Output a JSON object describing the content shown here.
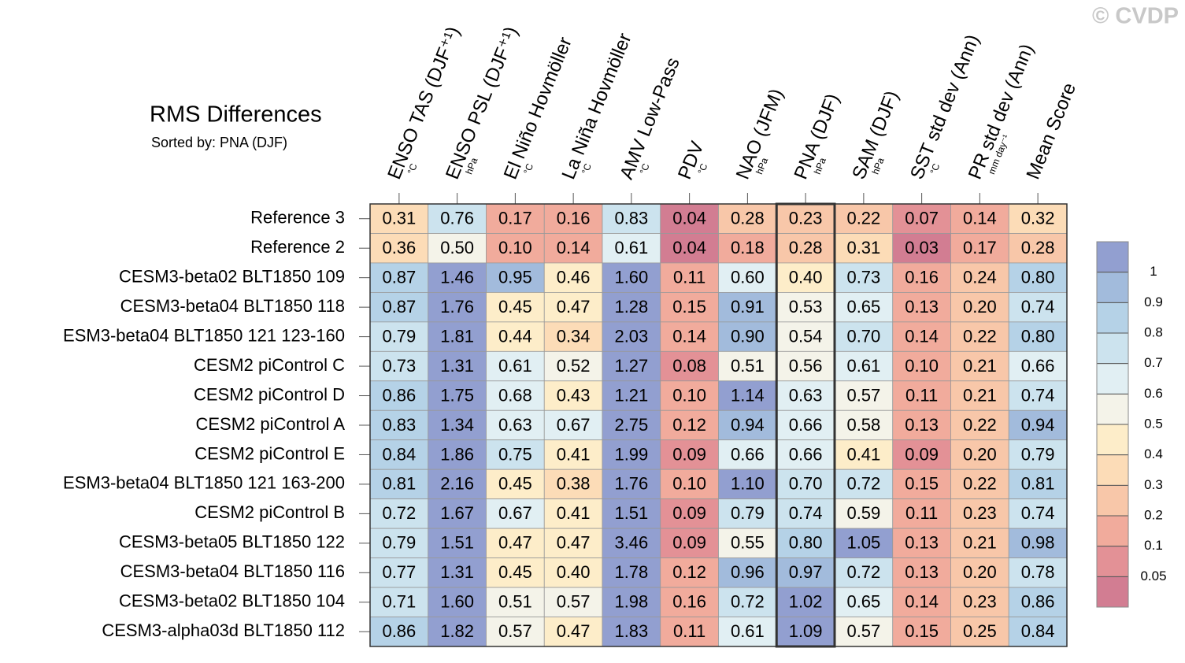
{
  "chart_data": {
    "type": "heatmap",
    "title": "RMS Differences",
    "subtitle": "Sorted by: PNA (DJF)",
    "watermark": "© CVDP",
    "highlight_column": 7,
    "columns": [
      {
        "name": "ENSO TAS (DJF⁺¹)",
        "unit": "°C"
      },
      {
        "name": "ENSO PSL (DJF⁺¹)",
        "unit": "hPa"
      },
      {
        "name": "El Niño Hovmöller",
        "unit": "°C"
      },
      {
        "name": "La Niña Hovmöller",
        "unit": "°C"
      },
      {
        "name": "AMV Low-Pass",
        "unit": "°C"
      },
      {
        "name": "PDV",
        "unit": "°C"
      },
      {
        "name": "NAO (JFM)",
        "unit": "hPa"
      },
      {
        "name": "PNA (DJF)",
        "unit": "hPa"
      },
      {
        "name": "SAM (DJF)",
        "unit": "hPa"
      },
      {
        "name": "SST std dev (Ann)",
        "unit": "°C"
      },
      {
        "name": "PR std dev (Ann)",
        "unit": "mm day⁻¹"
      },
      {
        "name": "Mean Score"
      }
    ],
    "rows": [
      "Reference 3",
      "Reference 2",
      "CESM3-beta02 BLT1850 109",
      "CESM3-beta04 BLT1850 118",
      "ESM3-beta04 BLT1850 121 123-160",
      "CESM2 piControl C",
      "CESM2 piControl D",
      "CESM2 piControl A",
      "CESM2 piControl E",
      "ESM3-beta04 BLT1850 121 163-200",
      "CESM2 piControl B",
      "CESM3-beta05 BLT1850 122",
      "CESM3-beta04 BLT1850 116",
      "CESM3-beta02 BLT1850 104",
      "CESM3-alpha03d BLT1850 112"
    ],
    "values": [
      [
        0.31,
        0.76,
        0.17,
        0.16,
        0.83,
        0.04,
        0.28,
        0.23,
        0.22,
        0.07,
        0.14,
        0.32
      ],
      [
        0.36,
        0.5,
        0.1,
        0.14,
        0.61,
        0.04,
        0.18,
        0.28,
        0.31,
        0.03,
        0.17,
        0.28
      ],
      [
        0.87,
        1.46,
        0.95,
        0.46,
        1.6,
        0.11,
        0.6,
        0.4,
        0.73,
        0.16,
        0.24,
        0.8
      ],
      [
        0.87,
        1.76,
        0.45,
        0.47,
        1.28,
        0.15,
        0.91,
        0.53,
        0.65,
        0.13,
        0.2,
        0.74
      ],
      [
        0.79,
        1.81,
        0.44,
        0.34,
        2.03,
        0.14,
        0.9,
        0.54,
        0.7,
        0.14,
        0.22,
        0.8
      ],
      [
        0.73,
        1.31,
        0.61,
        0.52,
        1.27,
        0.08,
        0.51,
        0.56,
        0.61,
        0.1,
        0.21,
        0.66
      ],
      [
        0.86,
        1.75,
        0.68,
        0.43,
        1.21,
        0.1,
        1.14,
        0.63,
        0.57,
        0.11,
        0.21,
        0.74
      ],
      [
        0.83,
        1.34,
        0.63,
        0.67,
        2.75,
        0.12,
        0.94,
        0.66,
        0.58,
        0.13,
        0.22,
        0.94
      ],
      [
        0.84,
        1.86,
        0.75,
        0.41,
        1.99,
        0.09,
        0.66,
        0.66,
        0.41,
        0.09,
        0.2,
        0.79
      ],
      [
        0.81,
        2.16,
        0.45,
        0.38,
        1.76,
        0.1,
        1.1,
        0.7,
        0.72,
        0.15,
        0.22,
        0.81
      ],
      [
        0.72,
        1.67,
        0.67,
        0.41,
        1.51,
        0.09,
        0.79,
        0.74,
        0.59,
        0.11,
        0.23,
        0.74
      ],
      [
        0.79,
        1.51,
        0.47,
        0.47,
        3.46,
        0.09,
        0.55,
        0.8,
        1.05,
        0.13,
        0.21,
        0.98
      ],
      [
        0.77,
        1.31,
        0.45,
        0.4,
        1.78,
        0.12,
        0.96,
        0.97,
        0.72,
        0.13,
        0.2,
        0.78
      ],
      [
        0.71,
        1.6,
        0.51,
        0.57,
        1.98,
        0.16,
        0.72,
        1.02,
        0.65,
        0.14,
        0.23,
        0.86
      ],
      [
        0.86,
        1.82,
        0.57,
        0.47,
        1.83,
        0.11,
        0.61,
        1.09,
        0.57,
        0.15,
        0.25,
        0.84
      ]
    ],
    "value_labels": [
      [
        "0.31",
        "0.76",
        "0.17",
        "0.16",
        "0.83",
        "0.04",
        "0.28",
        "0.23",
        "0.22",
        "0.07",
        "0.14",
        "0.32"
      ],
      [
        "0.36",
        "0.50",
        "0.10",
        "0.14",
        "0.61",
        "0.04",
        "0.18",
        "0.28",
        "0.31",
        "0.03",
        "0.17",
        "0.28"
      ],
      [
        "0.87",
        "1.46",
        "0.95",
        "0.46",
        "1.60",
        "0.11",
        "0.60",
        "0.40",
        "0.73",
        "0.16",
        "0.24",
        "0.80"
      ],
      [
        "0.87",
        "1.76",
        "0.45",
        "0.47",
        "1.28",
        "0.15",
        "0.91",
        "0.53",
        "0.65",
        "0.13",
        "0.20",
        "0.74"
      ],
      [
        "0.79",
        "1.81",
        "0.44",
        "0.34",
        "2.03",
        "0.14",
        "0.90",
        "0.54",
        "0.70",
        "0.14",
        "0.22",
        "0.80"
      ],
      [
        "0.73",
        "1.31",
        "0.61",
        "0.52",
        "1.27",
        "0.08",
        "0.51",
        "0.56",
        "0.61",
        "0.10",
        "0.21",
        "0.66"
      ],
      [
        "0.86",
        "1.75",
        "0.68",
        "0.43",
        "1.21",
        "0.10",
        "1.14",
        "0.63",
        "0.57",
        "0.11",
        "0.21",
        "0.74"
      ],
      [
        "0.83",
        "1.34",
        "0.63",
        "0.67",
        "2.75",
        "0.12",
        "0.94",
        "0.66",
        "0.58",
        "0.13",
        "0.22",
        "0.94"
      ],
      [
        "0.84",
        "1.86",
        "0.75",
        "0.41",
        "1.99",
        "0.09",
        "0.66",
        "0.66",
        "0.41",
        "0.09",
        "0.20",
        "0.79"
      ],
      [
        "0.81",
        "2.16",
        "0.45",
        "0.38",
        "1.76",
        "0.10",
        "1.10",
        "0.70",
        "0.72",
        "0.15",
        "0.22",
        "0.81"
      ],
      [
        "0.72",
        "1.67",
        "0.67",
        "0.41",
        "1.51",
        "0.09",
        "0.79",
        "0.74",
        "0.59",
        "0.11",
        "0.23",
        "0.74"
      ],
      [
        "0.79",
        "1.51",
        "0.47",
        "0.47",
        "3.46",
        "0.09",
        "0.55",
        "0.80",
        "1.05",
        "0.13",
        "0.21",
        "0.98"
      ],
      [
        "0.77",
        "1.31",
        "0.45",
        "0.40",
        "1.78",
        "0.12",
        "0.96",
        "0.97",
        "0.72",
        "0.13",
        "0.20",
        "0.78"
      ],
      [
        "0.71",
        "1.60",
        "0.51",
        "0.57",
        "1.98",
        "0.16",
        "0.72",
        "1.02",
        "0.65",
        "0.14",
        "0.23",
        "0.86"
      ],
      [
        "0.86",
        "1.82",
        "0.57",
        "0.47",
        "1.83",
        "0.11",
        "0.61",
        "1.09",
        "0.57",
        "0.15",
        "0.25",
        "0.84"
      ]
    ],
    "colors": [
      [
        "#fcdcb7",
        "#cce3ee",
        "#f1ab9c",
        "#f1ab9c",
        "#cce3ee",
        "#d27d92",
        "#f8c7a9",
        "#f8c7a9",
        "#f8c7a9",
        "#e39196",
        "#f1ab9c",
        "#fcdcb7"
      ],
      [
        "#fcdcb7",
        "#f4f3e9",
        "#f1ab9c",
        "#f1ab9c",
        "#e1eff3",
        "#d27d92",
        "#f1ab9c",
        "#f8c7a9",
        "#fcdcb7",
        "#d27d92",
        "#f1ab9c",
        "#f8c7a9"
      ],
      [
        "#b5d2e7",
        "#929fd0",
        "#a2bbdc",
        "#fdedc9",
        "#929fd0",
        "#f1ab9c",
        "#e1eff3",
        "#fdedc9",
        "#cce3ee",
        "#f1ab9c",
        "#f8c7a9",
        "#b5d2e7"
      ],
      [
        "#b5d2e7",
        "#929fd0",
        "#fdedc9",
        "#fdedc9",
        "#929fd0",
        "#f1ab9c",
        "#a2bbdc",
        "#f4f3e9",
        "#e1eff3",
        "#f1ab9c",
        "#f8c7a9",
        "#cce3ee"
      ],
      [
        "#cce3ee",
        "#929fd0",
        "#fdedc9",
        "#fcdcb7",
        "#929fd0",
        "#f1ab9c",
        "#a2bbdc",
        "#f4f3e9",
        "#cce3ee",
        "#f1ab9c",
        "#f8c7a9",
        "#b5d2e7"
      ],
      [
        "#cce3ee",
        "#929fd0",
        "#e1eff3",
        "#f4f3e9",
        "#929fd0",
        "#e39196",
        "#f4f3e9",
        "#f4f3e9",
        "#e1eff3",
        "#f1ab9c",
        "#f8c7a9",
        "#e1eff3"
      ],
      [
        "#b5d2e7",
        "#929fd0",
        "#e1eff3",
        "#fdedc9",
        "#929fd0",
        "#f1ab9c",
        "#929fd0",
        "#e1eff3",
        "#f4f3e9",
        "#f1ab9c",
        "#f8c7a9",
        "#cce3ee"
      ],
      [
        "#b5d2e7",
        "#929fd0",
        "#e1eff3",
        "#e1eff3",
        "#929fd0",
        "#f1ab9c",
        "#a2bbdc",
        "#e1eff3",
        "#f4f3e9",
        "#f1ab9c",
        "#f8c7a9",
        "#a2bbdc"
      ],
      [
        "#b5d2e7",
        "#929fd0",
        "#cce3ee",
        "#fdedc9",
        "#929fd0",
        "#e39196",
        "#e1eff3",
        "#e1eff3",
        "#fdedc9",
        "#e39196",
        "#f8c7a9",
        "#cce3ee"
      ],
      [
        "#b5d2e7",
        "#929fd0",
        "#fdedc9",
        "#fcdcb7",
        "#929fd0",
        "#f1ab9c",
        "#929fd0",
        "#cce3ee",
        "#cce3ee",
        "#f1ab9c",
        "#f8c7a9",
        "#b5d2e7"
      ],
      [
        "#cce3ee",
        "#929fd0",
        "#e1eff3",
        "#fdedc9",
        "#929fd0",
        "#e39196",
        "#cce3ee",
        "#cce3ee",
        "#f4f3e9",
        "#f1ab9c",
        "#f8c7a9",
        "#cce3ee"
      ],
      [
        "#cce3ee",
        "#929fd0",
        "#fdedc9",
        "#fdedc9",
        "#929fd0",
        "#e39196",
        "#f4f3e9",
        "#b5d2e7",
        "#929fd0",
        "#f1ab9c",
        "#f8c7a9",
        "#a2bbdc"
      ],
      [
        "#cce3ee",
        "#929fd0",
        "#fdedc9",
        "#fdedc9",
        "#929fd0",
        "#f1ab9c",
        "#a2bbdc",
        "#a2bbdc",
        "#cce3ee",
        "#f1ab9c",
        "#f8c7a9",
        "#cce3ee"
      ],
      [
        "#cce3ee",
        "#929fd0",
        "#f4f3e9",
        "#f4f3e9",
        "#929fd0",
        "#f1ab9c",
        "#cce3ee",
        "#929fd0",
        "#e1eff3",
        "#f1ab9c",
        "#f8c7a9",
        "#b5d2e7"
      ],
      [
        "#b5d2e7",
        "#929fd0",
        "#f4f3e9",
        "#fdedc9",
        "#929fd0",
        "#f1ab9c",
        "#e1eff3",
        "#929fd0",
        "#f4f3e9",
        "#f1ab9c",
        "#f8c7a9",
        "#b5d2e7"
      ]
    ],
    "colorbar": {
      "levels": [
        0.05,
        0.1,
        0.2,
        0.3,
        0.4,
        0.5,
        0.6,
        0.7,
        0.8,
        0.9,
        1
      ],
      "colors": [
        "#d27d92",
        "#e39196",
        "#f1ab9c",
        "#f8c7a9",
        "#fcdcb7",
        "#fdedc9",
        "#f4f3e9",
        "#e1eff3",
        "#cce3ee",
        "#b5d2e7",
        "#a2bbdc",
        "#929fd0"
      ]
    }
  }
}
